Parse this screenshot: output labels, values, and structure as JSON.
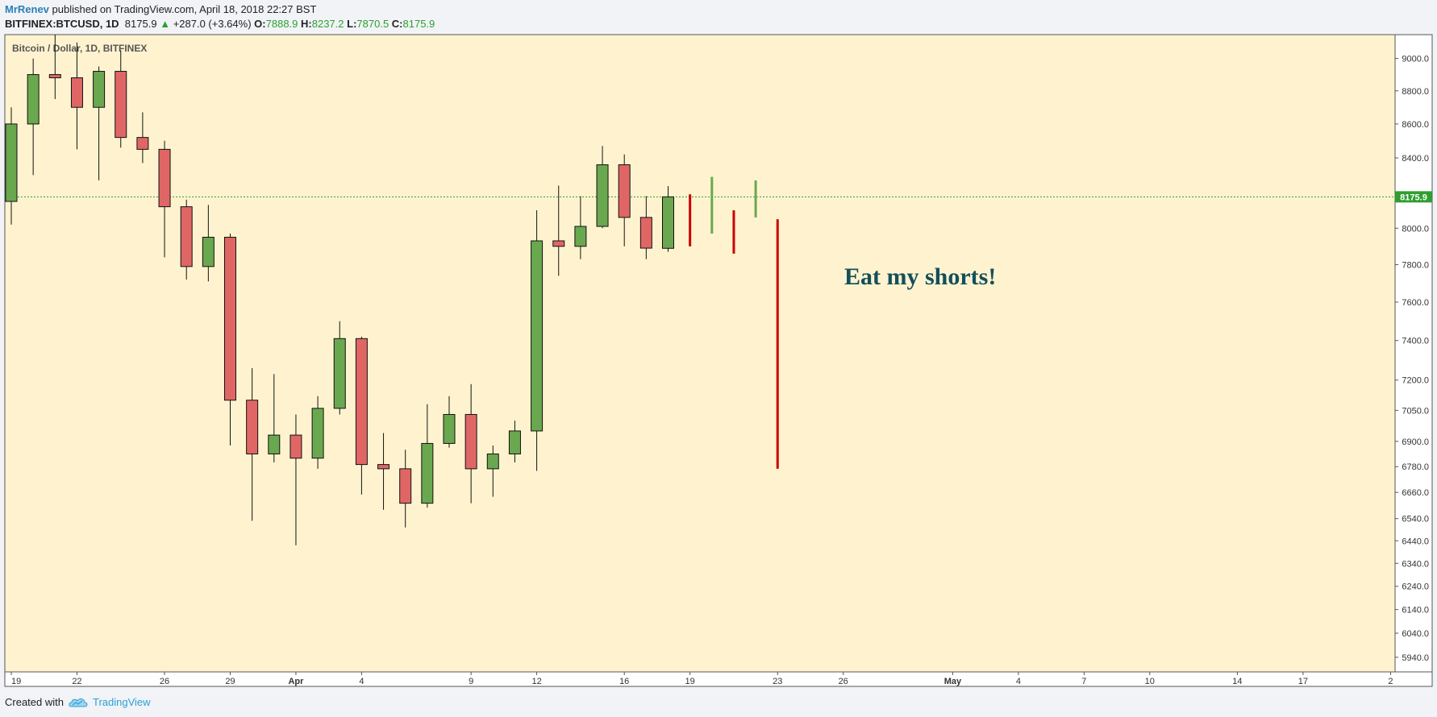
{
  "header": {
    "author": "MrRenev",
    "published": "published on TradingView.com, April 18, 2018 22:27 BST",
    "symbol": "BITFINEX:BTCUSD, 1D",
    "last": "8175.9",
    "change_arrow": "▲",
    "change": "+287.0 (+3.64%)",
    "o_label": "O:",
    "o": "7888.9",
    "h_label": "H:",
    "h": "8237.2",
    "l_label": "L:",
    "l": "7870.5",
    "c_label": "C:",
    "c": "8175.9"
  },
  "footer": {
    "created_with": "Created with",
    "brand": "TradingView"
  },
  "colors": {
    "plot_bg": "#fff3cf",
    "up": "#6aa84f",
    "down": "#e06666",
    "forecast_up": "#6aa84f",
    "forecast_down": "#cc0000",
    "price_line": "#2e9e30",
    "annotation": "#134f5c"
  },
  "chart_data": {
    "type": "candlestick",
    "title": "Bitcoin / Dollar, 1D, BITFINEX",
    "x_tick_labels": [
      "19",
      "22",
      "26",
      "29",
      "Apr",
      "4",
      "9",
      "12",
      "16",
      "19",
      "23",
      "26",
      "May",
      "4",
      "7",
      "10",
      "14",
      "17",
      "2"
    ],
    "y_tick_labels": [
      "9000.0",
      "8800.0",
      "8600.0",
      "8400.0",
      "8000.0",
      "7800.0",
      "7600.0",
      "7400.0",
      "7200.0",
      "7050.0",
      "6900.0",
      "6780.0",
      "6660.0",
      "6540.0",
      "6440.0",
      "6340.0",
      "6240.0",
      "6140.0",
      "6040.0",
      "5940.0"
    ],
    "y_scale": "log",
    "ylim": [
      5880,
      9150
    ],
    "candles": [
      {
        "date": "2018-03-19",
        "o": 8150,
        "h": 8700,
        "l": 8020,
        "c": 8600
      },
      {
        "date": "2018-03-20",
        "o": 8600,
        "h": 9000,
        "l": 8300,
        "c": 8900
      },
      {
        "date": "2018-03-21",
        "o": 8900,
        "h": 9150,
        "l": 8750,
        "c": 8880
      },
      {
        "date": "2018-03-22",
        "o": 8880,
        "h": 9100,
        "l": 8450,
        "c": 8700
      },
      {
        "date": "2018-03-23",
        "o": 8700,
        "h": 8950,
        "l": 8270,
        "c": 8920
      },
      {
        "date": "2018-03-24",
        "o": 8920,
        "h": 9050,
        "l": 8460,
        "c": 8520
      },
      {
        "date": "2018-03-25",
        "o": 8520,
        "h": 8670,
        "l": 8370,
        "c": 8450
      },
      {
        "date": "2018-03-26",
        "o": 8450,
        "h": 8500,
        "l": 7840,
        "c": 8120
      },
      {
        "date": "2018-03-27",
        "o": 8120,
        "h": 8160,
        "l": 7720,
        "c": 7790
      },
      {
        "date": "2018-03-28",
        "o": 7790,
        "h": 8130,
        "l": 7710,
        "c": 7950
      },
      {
        "date": "2018-03-29",
        "o": 7950,
        "h": 7970,
        "l": 6880,
        "c": 7100
      },
      {
        "date": "2018-03-30",
        "o": 7100,
        "h": 7260,
        "l": 6530,
        "c": 6840
      },
      {
        "date": "2018-03-31",
        "o": 6840,
        "h": 7230,
        "l": 6800,
        "c": 6930
      },
      {
        "date": "2018-04-01",
        "o": 6930,
        "h": 7030,
        "l": 6420,
        "c": 6820
      },
      {
        "date": "2018-04-02",
        "o": 6820,
        "h": 7120,
        "l": 6770,
        "c": 7060
      },
      {
        "date": "2018-04-03",
        "o": 7060,
        "h": 7500,
        "l": 7030,
        "c": 7410
      },
      {
        "date": "2018-04-04",
        "o": 7410,
        "h": 7420,
        "l": 6650,
        "c": 6790
      },
      {
        "date": "2018-04-05",
        "o": 6790,
        "h": 6940,
        "l": 6580,
        "c": 6770
      },
      {
        "date": "2018-04-06",
        "o": 6770,
        "h": 6860,
        "l": 6500,
        "c": 6610
      },
      {
        "date": "2018-04-07",
        "o": 6610,
        "h": 7080,
        "l": 6590,
        "c": 6890
      },
      {
        "date": "2018-04-08",
        "o": 6890,
        "h": 7120,
        "l": 6870,
        "c": 7030
      },
      {
        "date": "2018-04-09",
        "o": 7030,
        "h": 7180,
        "l": 6610,
        "c": 6770
      },
      {
        "date": "2018-04-10",
        "o": 6770,
        "h": 6880,
        "l": 6640,
        "c": 6840
      },
      {
        "date": "2018-04-11",
        "o": 6840,
        "h": 7000,
        "l": 6800,
        "c": 6950
      },
      {
        "date": "2018-04-12",
        "o": 6950,
        "h": 8100,
        "l": 6760,
        "c": 7930
      },
      {
        "date": "2018-04-13",
        "o": 7930,
        "h": 8240,
        "l": 7740,
        "c": 7900
      },
      {
        "date": "2018-04-14",
        "o": 7900,
        "h": 8180,
        "l": 7830,
        "c": 8010
      },
      {
        "date": "2018-04-15",
        "o": 8010,
        "h": 8470,
        "l": 8000,
        "c": 8360
      },
      {
        "date": "2018-04-16",
        "o": 8360,
        "h": 8420,
        "l": 7900,
        "c": 8060
      },
      {
        "date": "2018-04-17",
        "o": 8060,
        "h": 8180,
        "l": 7830,
        "c": 7890
      },
      {
        "date": "2018-04-18",
        "o": 7889,
        "h": 8237,
        "l": 7870,
        "c": 8176
      }
    ],
    "forecast_bars": [
      {
        "date": "2018-04-19",
        "high": 8190,
        "low": 7900,
        "direction": "down"
      },
      {
        "date": "2018-04-20",
        "high": 8290,
        "low": 7970,
        "direction": "up"
      },
      {
        "date": "2018-04-21",
        "high": 8100,
        "low": 7860,
        "direction": "down"
      },
      {
        "date": "2018-04-22",
        "high": 8270,
        "low": 8060,
        "direction": "up"
      },
      {
        "date": "2018-04-23",
        "high": 8050,
        "low": 6770,
        "direction": "down"
      }
    ],
    "last_price": "8175.9",
    "annotation": "Eat my shorts!",
    "grid": false
  }
}
